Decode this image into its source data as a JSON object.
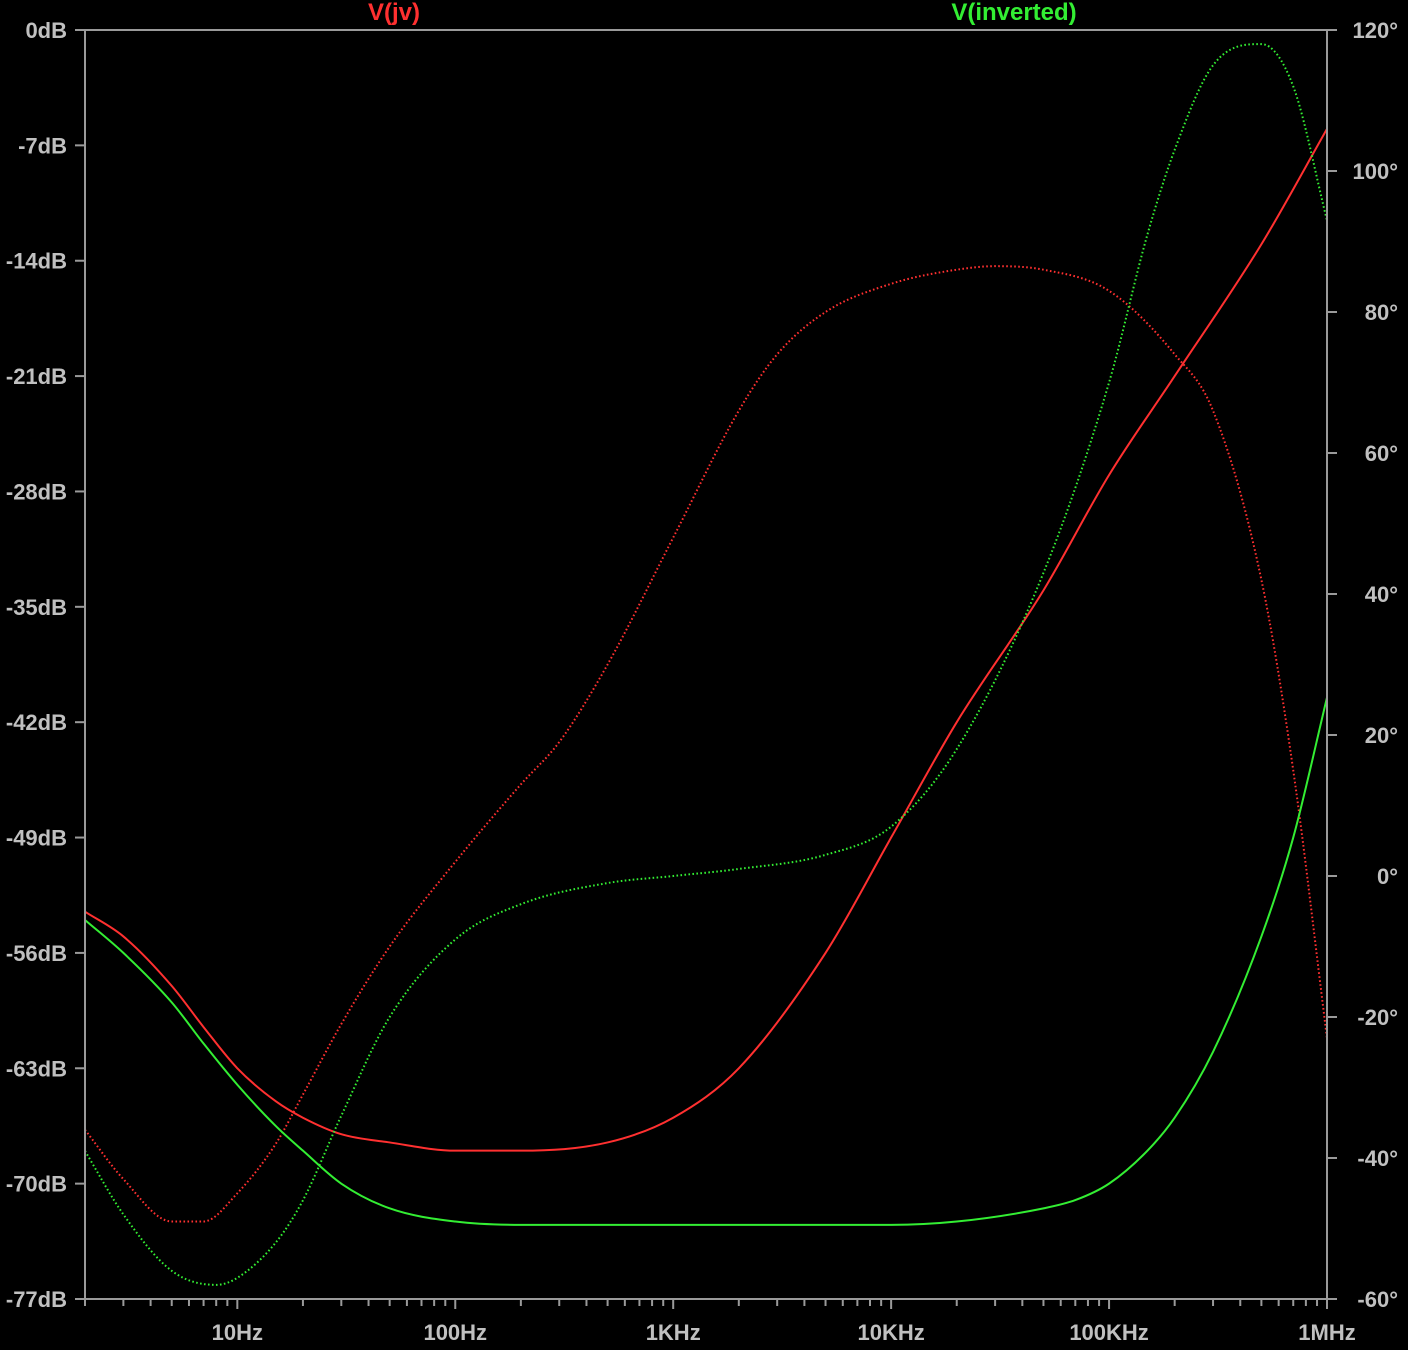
{
  "chart_data": {
    "type": "line",
    "title": "",
    "xlabel": "",
    "x_scale": "log",
    "xlim": [
      2,
      1000000
    ],
    "x_ticks": [
      {
        "value": 10,
        "label": "10Hz"
      },
      {
        "value": 100,
        "label": "100Hz"
      },
      {
        "value": 1000,
        "label": "1KHz"
      },
      {
        "value": 10000,
        "label": "10KHz"
      },
      {
        "value": 100000,
        "label": "100KHz"
      },
      {
        "value": 1000000,
        "label": "1MHz"
      }
    ],
    "y_left": {
      "unit": "dB",
      "ylim": [
        -77,
        0
      ],
      "ticks": [
        {
          "value": 0,
          "label": "0dB"
        },
        {
          "value": -7,
          "label": "-7dB"
        },
        {
          "value": -14,
          "label": "-14dB"
        },
        {
          "value": -21,
          "label": "-21dB"
        },
        {
          "value": -28,
          "label": "-28dB"
        },
        {
          "value": -35,
          "label": "-35dB"
        },
        {
          "value": -42,
          "label": "-42dB"
        },
        {
          "value": -49,
          "label": "-49dB"
        },
        {
          "value": -56,
          "label": "-56dB"
        },
        {
          "value": -63,
          "label": "-63dB"
        },
        {
          "value": -70,
          "label": "-70dB"
        },
        {
          "value": -77,
          "label": "-77dB"
        }
      ]
    },
    "y_right": {
      "unit": "°",
      "ylim": [
        -60,
        120
      ],
      "ticks": [
        {
          "value": 120,
          "label": "120°"
        },
        {
          "value": 100,
          "label": "100°"
        },
        {
          "value": 80,
          "label": "80°"
        },
        {
          "value": 60,
          "label": "60°"
        },
        {
          "value": 40,
          "label": "40°"
        },
        {
          "value": 20,
          "label": "20°"
        },
        {
          "value": 0,
          "label": "0°"
        },
        {
          "value": -20,
          "label": "-20°"
        },
        {
          "value": -40,
          "label": "-40°"
        },
        {
          "value": -60,
          "label": "-60°"
        }
      ]
    },
    "grid": false,
    "legend_position": "top",
    "series": [
      {
        "name": "V(jv)",
        "color": "#ff3030",
        "axis": "left",
        "style": "solid",
        "quantity": "magnitude",
        "x": [
          2,
          3,
          5,
          7,
          10,
          15,
          20,
          30,
          50,
          100,
          200,
          500,
          1000,
          2000,
          5000,
          10000,
          20000,
          50000,
          100000,
          200000,
          500000,
          1000000
        ],
        "y": [
          -53.5,
          -55,
          -58,
          -60.5,
          -63,
          -65,
          -66,
          -67,
          -67.5,
          -68,
          -68,
          -67.5,
          -66,
          -63,
          -56,
          -49,
          -42,
          -34,
          -27,
          -21,
          -13,
          -6
        ]
      },
      {
        "name": "V(jv) phase",
        "color": "#ff3030",
        "axis": "right",
        "style": "dotted",
        "quantity": "phase",
        "x": [
          2,
          3,
          5,
          7,
          10,
          15,
          20,
          30,
          50,
          100,
          200,
          300,
          500,
          1000,
          2000,
          3000,
          5000,
          10000,
          20000,
          30000,
          50000,
          100000,
          200000,
          300000,
          500000,
          700000,
          1000000
        ],
        "y": [
          -36,
          -43,
          -49,
          -49,
          -45,
          -38,
          -31,
          -21,
          -10,
          2,
          13,
          19,
          30,
          48,
          66,
          74,
          80,
          84,
          86,
          86.5,
          86,
          83,
          74,
          66,
          42,
          15,
          -23
        ]
      },
      {
        "name": "V(inverted)",
        "color": "#33ee33",
        "axis": "left",
        "style": "solid",
        "quantity": "magnitude",
        "x": [
          2,
          3,
          5,
          7,
          10,
          15,
          20,
          30,
          50,
          100,
          200,
          500,
          1000,
          2000,
          5000,
          10000,
          20000,
          50000,
          70000,
          100000,
          150000,
          200000,
          300000,
          500000,
          700000,
          1000000
        ],
        "y": [
          -54,
          -56,
          -59,
          -61.5,
          -64,
          -66.5,
          -68,
          -70,
          -71.5,
          -72.3,
          -72.5,
          -72.5,
          -72.5,
          -72.5,
          -72.5,
          -72.5,
          -72.3,
          -71.5,
          -71,
          -70,
          -68,
          -66,
          -62,
          -55,
          -49,
          -40.5
        ]
      },
      {
        "name": "V(inverted) phase",
        "color": "#33ee33",
        "axis": "right",
        "style": "dotted",
        "quantity": "phase",
        "x": [
          2,
          3,
          5,
          8,
          10,
          15,
          20,
          30,
          50,
          100,
          200,
          500,
          1000,
          2000,
          5000,
          10000,
          20000,
          50000,
          100000,
          150000,
          200000,
          300000,
          500000,
          700000,
          1000000
        ],
        "y": [
          -39,
          -48,
          -56,
          -58,
          -57,
          -52,
          -46,
          -34,
          -20,
          -9,
          -4,
          -1,
          0,
          1,
          3,
          7,
          18,
          43,
          70,
          91,
          103,
          115,
          118,
          112,
          93
        ]
      }
    ]
  },
  "legend": {
    "v_jv": "V(jv)",
    "v_inverted": "V(inverted)"
  }
}
